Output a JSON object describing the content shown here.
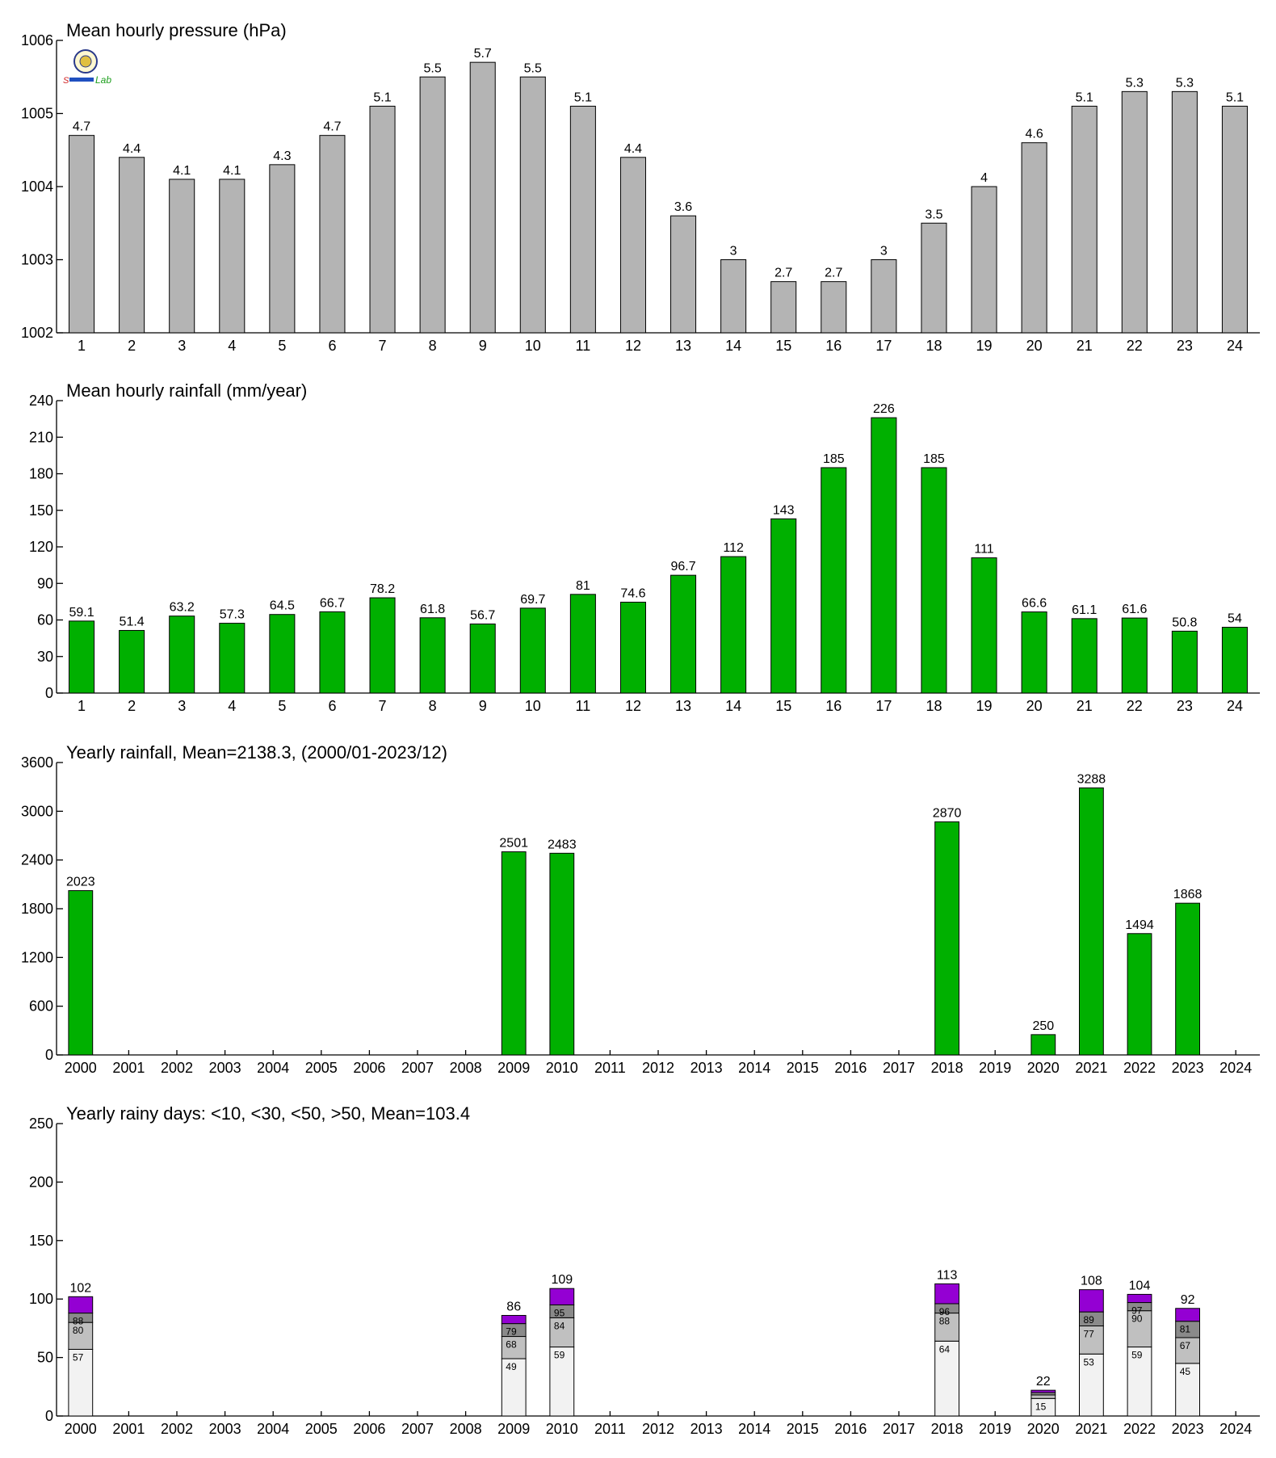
{
  "colors": {
    "pressure_bar": "#b4b4b4",
    "rain_bar": "#00b000",
    "bar_stroke": "#000000",
    "rainy_lt10": "#f2f2f2",
    "rainy_lt30": "#c0c0c0",
    "rainy_lt50": "#8a8a8a",
    "rainy_gt50": "#9400d3"
  },
  "logo": {
    "icon": "lab-seal-logo",
    "text": "Lab"
  },
  "chart_data": [
    {
      "type": "bar",
      "title": "Mean hourly pressure (hPa)",
      "categories": [
        "1",
        "2",
        "3",
        "4",
        "5",
        "6",
        "7",
        "8",
        "9",
        "10",
        "11",
        "12",
        "13",
        "14",
        "15",
        "16",
        "17",
        "18",
        "19",
        "20",
        "21",
        "22",
        "23",
        "24"
      ],
      "values": [
        1004.7,
        1004.4,
        1004.1,
        1004.1,
        1004.3,
        1004.7,
        1005.1,
        1005.5,
        1005.7,
        1005.5,
        1005.1,
        1004.4,
        1003.6,
        1003.0,
        1002.7,
        1002.7,
        1003.0,
        1003.5,
        1004.0,
        1004.6,
        1005.1,
        1005.3,
        1005.3,
        1005.1
      ],
      "value_labels": [
        "4.7",
        "4.4",
        "4.1",
        "4.1",
        "4.3",
        "4.7",
        "5.1",
        "5.5",
        "5.7",
        "5.5",
        "5.1",
        "4.4",
        "3.6",
        "3",
        "2.7",
        "2.7",
        "3",
        "3.5",
        "4",
        "4.6",
        "5.1",
        "5.3",
        "5.3",
        "5.1"
      ],
      "ylim": [
        1002,
        1006
      ],
      "yticks": [
        "1002",
        "1003",
        "1004",
        "1005",
        "1006"
      ],
      "xlabel": "",
      "ylabel": "",
      "grid": false
    },
    {
      "type": "bar",
      "title": "Mean hourly rainfall (mm/year)",
      "categories": [
        "1",
        "2",
        "3",
        "4",
        "5",
        "6",
        "7",
        "8",
        "9",
        "10",
        "11",
        "12",
        "13",
        "14",
        "15",
        "16",
        "17",
        "18",
        "19",
        "20",
        "21",
        "22",
        "23",
        "24"
      ],
      "values": [
        59.1,
        51.4,
        63.2,
        57.3,
        64.5,
        66.7,
        78.2,
        61.8,
        56.7,
        69.7,
        81,
        74.6,
        96.7,
        112,
        143,
        185,
        226,
        185,
        111,
        66.6,
        61.1,
        61.6,
        50.8,
        54
      ],
      "value_labels": [
        "59.1",
        "51.4",
        "63.2",
        "57.3",
        "64.5",
        "66.7",
        "78.2",
        "61.8",
        "56.7",
        "69.7",
        "81",
        "74.6",
        "96.7",
        "112",
        "143",
        "185",
        "226",
        "185",
        "111",
        "66.6",
        "61.1",
        "61.6",
        "50.8",
        "54"
      ],
      "ylim": [
        0,
        240
      ],
      "yticks": [
        "0",
        "30",
        "60",
        "90",
        "120",
        "150",
        "180",
        "210",
        "240"
      ],
      "xlabel": "",
      "ylabel": "",
      "grid": false
    },
    {
      "type": "bar",
      "title": "Yearly rainfall, Mean=2138.3, (2000/01-2023/12)",
      "categories": [
        "2000",
        "2001",
        "2002",
        "2003",
        "2004",
        "2005",
        "2006",
        "2007",
        "2008",
        "2009",
        "2010",
        "2011",
        "2012",
        "2013",
        "2014",
        "2015",
        "2016",
        "2017",
        "2018",
        "2019",
        "2020",
        "2021",
        "2022",
        "2023",
        "2024"
      ],
      "values": [
        2023,
        null,
        null,
        null,
        null,
        null,
        null,
        null,
        null,
        2501,
        2483,
        null,
        null,
        null,
        null,
        null,
        null,
        null,
        2870,
        null,
        250,
        3288,
        1494,
        1868,
        null
      ],
      "value_labels": [
        "2023",
        "",
        "",
        "",
        "",
        "",
        "",
        "",
        "",
        "2501",
        "2483",
        "",
        "",
        "",
        "",
        "",
        "",
        "",
        "2870",
        "",
        "250",
        "3288",
        "1494",
        "1868",
        ""
      ],
      "ylim": [
        0,
        3600
      ],
      "yticks": [
        "0",
        "600",
        "1200",
        "1800",
        "2400",
        "3000",
        "3600"
      ],
      "xlabel": "",
      "ylabel": "",
      "grid": false
    },
    {
      "type": "bar",
      "stacked": true,
      "title": "Yearly rainy days: <10, <30, <50, >50, Mean=103.4",
      "categories": [
        "2000",
        "2001",
        "2002",
        "2003",
        "2004",
        "2005",
        "2006",
        "2007",
        "2008",
        "2009",
        "2010",
        "2011",
        "2012",
        "2013",
        "2014",
        "2015",
        "2016",
        "2017",
        "2018",
        "2019",
        "2020",
        "2021",
        "2022",
        "2023",
        "2024"
      ],
      "series_order": [
        "lt10",
        "lt30",
        "lt50",
        "gt50"
      ],
      "cumulative": [
        [
          57,
          80,
          88,
          102
        ],
        null,
        null,
        null,
        null,
        null,
        null,
        null,
        null,
        [
          49,
          68,
          79,
          86
        ],
        [
          59,
          84,
          95,
          109
        ],
        null,
        null,
        null,
        null,
        null,
        null,
        null,
        [
          64,
          88,
          96,
          113
        ],
        null,
        [
          15,
          18,
          20,
          22
        ],
        [
          53,
          77,
          89,
          108
        ],
        [
          59,
          90,
          97,
          104
        ],
        [
          45,
          67,
          81,
          92
        ],
        null
      ],
      "segment_labels": [
        [
          "57",
          "80",
          "88"
        ],
        null,
        null,
        null,
        null,
        null,
        null,
        null,
        null,
        [
          "49",
          "68",
          "79"
        ],
        [
          "59",
          "84",
          "95"
        ],
        null,
        null,
        null,
        null,
        null,
        null,
        null,
        [
          "64",
          "88",
          "96"
        ],
        null,
        [
          "15",
          "",
          ""
        ],
        [
          "53",
          "77",
          "89"
        ],
        [
          "59",
          "90",
          "97"
        ],
        [
          "45",
          "67",
          "81"
        ],
        null
      ],
      "total_labels": [
        "102",
        "",
        "",
        "",
        "",
        "",
        "",
        "",
        "",
        "86",
        "109",
        "",
        "",
        "",
        "",
        "",
        "",
        "",
        "113",
        "",
        "22",
        "108",
        "104",
        "92",
        ""
      ],
      "ylim": [
        0,
        250
      ],
      "yticks": [
        "0",
        "50",
        "100",
        "150",
        "200",
        "250"
      ],
      "xlabel": "",
      "ylabel": "",
      "grid": false
    }
  ]
}
